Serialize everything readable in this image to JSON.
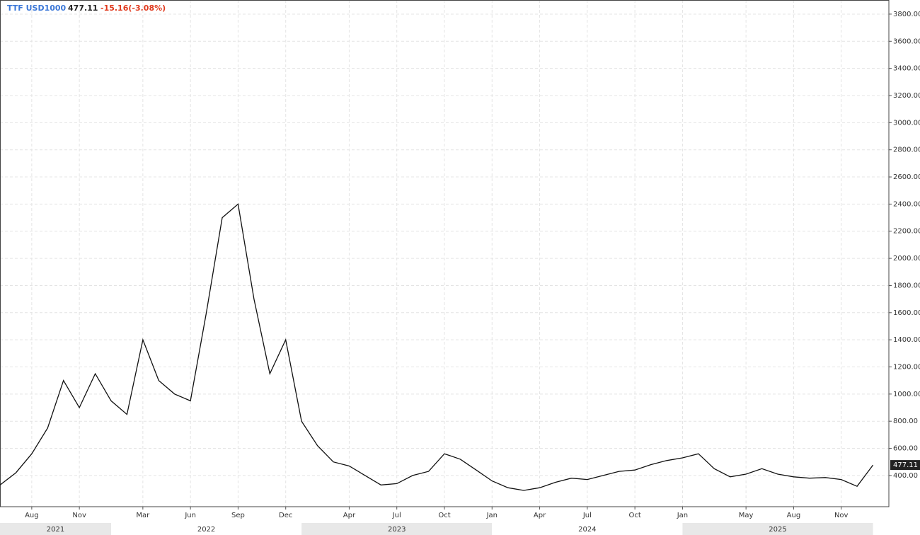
{
  "header": {
    "symbol": "TTF USD1000",
    "last": "477.11",
    "change": "-15.16(-3.08%)"
  },
  "chart_data": {
    "type": "line",
    "x": [
      "2021-06",
      "2021-07",
      "2021-08",
      "2021-09",
      "2021-10",
      "2021-11",
      "2021-12",
      "2022-01",
      "2022-02",
      "2022-03",
      "2022-04",
      "2022-05",
      "2022-06",
      "2022-07",
      "2022-08",
      "2022-09",
      "2022-10",
      "2022-11",
      "2022-12",
      "2023-01",
      "2023-02",
      "2023-03",
      "2023-04",
      "2023-05",
      "2023-06",
      "2023-07",
      "2023-08",
      "2023-09",
      "2023-10",
      "2023-11",
      "2023-12",
      "2024-01",
      "2024-02",
      "2024-03",
      "2024-04",
      "2024-05",
      "2024-06",
      "2024-07",
      "2024-08",
      "2024-09",
      "2024-10",
      "2024-11",
      "2024-12",
      "2025-01",
      "2025-02",
      "2025-03",
      "2025-04",
      "2025-05",
      "2025-06",
      "2025-07",
      "2025-08",
      "2025-09",
      "2025-10",
      "2025-11",
      "2025-12",
      "2026-01"
    ],
    "series": [
      {
        "name": "TTF USD1000",
        "color": "#111111",
        "values": [
          330,
          420,
          560,
          750,
          1100,
          900,
          1150,
          950,
          850,
          1400,
          1100,
          1000,
          950,
          1600,
          2300,
          2400,
          1700,
          1150,
          1400,
          800,
          620,
          500,
          470,
          400,
          330,
          340,
          400,
          430,
          560,
          520,
          440,
          360,
          310,
          290,
          310,
          350,
          380,
          370,
          400,
          430,
          440,
          480,
          510,
          530,
          560,
          450,
          390,
          410,
          450,
          410,
          390,
          380,
          385,
          370,
          320,
          477.11
        ]
      }
    ],
    "xlim": [
      "2021-06",
      "2026-02"
    ],
    "xticks": [
      {
        "value": "2021-08",
        "label": "Aug"
      },
      {
        "value": "2021-11",
        "label": "Nov"
      },
      {
        "value": "2022-03",
        "label": "Mar"
      },
      {
        "value": "2022-06",
        "label": "Jun"
      },
      {
        "value": "2022-09",
        "label": "Sep"
      },
      {
        "value": "2022-12",
        "label": "Dec"
      },
      {
        "value": "2023-04",
        "label": "Apr"
      },
      {
        "value": "2023-07",
        "label": "Jul"
      },
      {
        "value": "2023-10",
        "label": "Oct"
      },
      {
        "value": "2024-01",
        "label": "Jan"
      },
      {
        "value": "2024-04",
        "label": "Apr"
      },
      {
        "value": "2024-07",
        "label": "Jul"
      },
      {
        "value": "2024-10",
        "label": "Oct"
      },
      {
        "value": "2025-01",
        "label": "Jan"
      },
      {
        "value": "2025-05",
        "label": "May"
      },
      {
        "value": "2025-08",
        "label": "Aug"
      },
      {
        "value": "2025-11",
        "label": "Nov"
      }
    ],
    "years": [
      "2021",
      "2022",
      "2023",
      "2024",
      "2025"
    ],
    "ylim": [
      170,
      3904
    ],
    "yticks": [
      {
        "value": 400,
        "label": "400.00"
      },
      {
        "value": 600,
        "label": "600.00"
      },
      {
        "value": 800,
        "label": "800.00"
      },
      {
        "value": 1000,
        "label": "1000.00"
      },
      {
        "value": 1200,
        "label": "1200.00"
      },
      {
        "value": 1400,
        "label": "1400.00"
      },
      {
        "value": 1600,
        "label": "1600.00"
      },
      {
        "value": 1800,
        "label": "1800.00"
      },
      {
        "value": 2000,
        "label": "2000.00"
      },
      {
        "value": 2200,
        "label": "2200.00"
      },
      {
        "value": 2400,
        "label": "2400.00"
      },
      {
        "value": 2600,
        "label": "2600.00"
      },
      {
        "value": 2800,
        "label": "2800.00"
      },
      {
        "value": 3000,
        "label": "3000.00"
      },
      {
        "value": 3200,
        "label": "3200.00"
      },
      {
        "value": 3400,
        "label": "3400.00"
      },
      {
        "value": 3600,
        "label": "3600.00"
      },
      {
        "value": 3800,
        "label": "3800.00"
      }
    ],
    "grid": true
  }
}
